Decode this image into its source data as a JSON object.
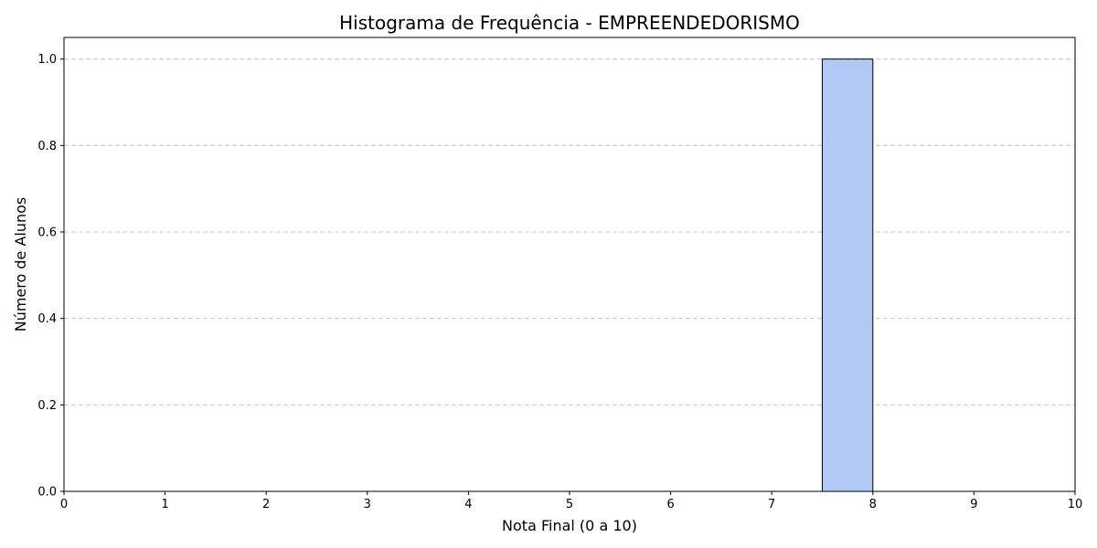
{
  "chart_data": {
    "type": "bar",
    "title": "Histograma de Frequência - EMPREENDEDORISMO",
    "xlabel": "Nota Final (0 a 10)",
    "ylabel": "Número de Alunos",
    "xlim": [
      0,
      10
    ],
    "ylim": [
      0,
      1.05
    ],
    "xticks": [
      "0",
      "1",
      "2",
      "3",
      "4",
      "5",
      "6",
      "7",
      "8",
      "9",
      "10"
    ],
    "yticks": [
      "0.0",
      "0.2",
      "0.4",
      "0.6",
      "0.8",
      "1.0"
    ],
    "bins": [
      {
        "x0": 7.5,
        "x1": 8.0,
        "value": 1
      }
    ],
    "grid": "y",
    "bar_color": "#b2c8f5"
  }
}
